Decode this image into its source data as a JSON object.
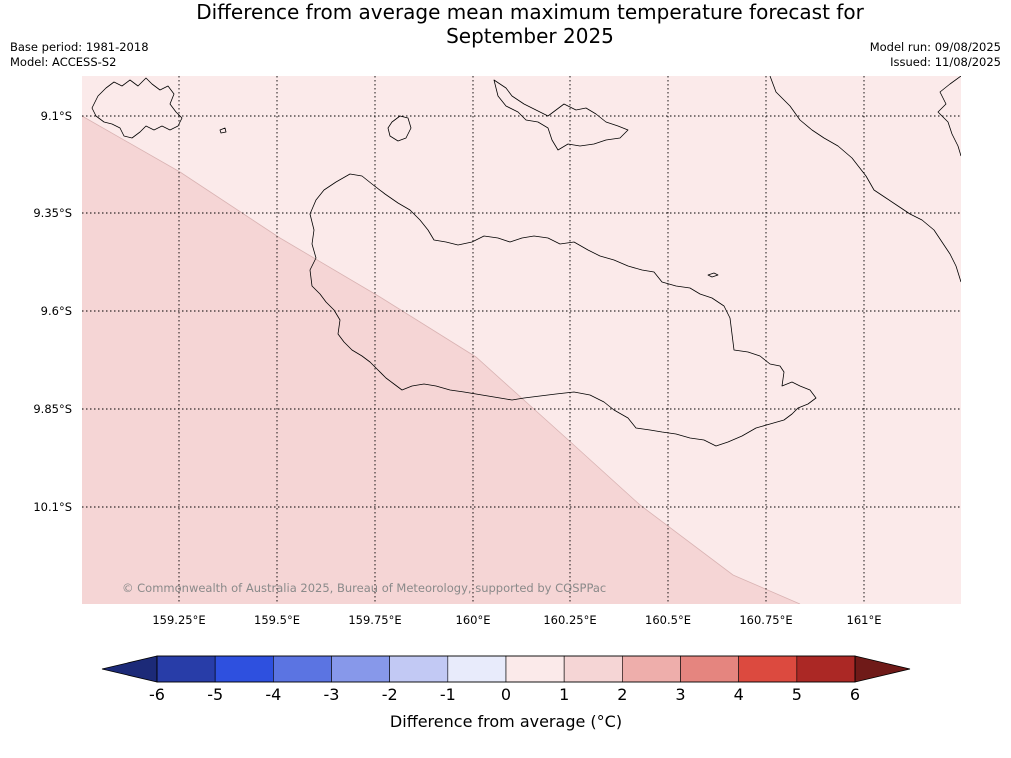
{
  "title_line1": "Difference from average mean maximum temperature forecast for",
  "title_line2": "September 2025",
  "meta": {
    "base_period": "Base period: 1981-2018",
    "model": "Model: ACCESS-S2",
    "model_run": "Model run: 09/08/2025",
    "issued": "Issued: 11/08/2025"
  },
  "map": {
    "lat_ticks": [
      "9.1°S",
      "9.35°S",
      "9.6°S",
      "9.85°S",
      "10.1°S"
    ],
    "lon_ticks": [
      "159.25°E",
      "159.5°E",
      "159.75°E",
      "160°E",
      "160.25°E",
      "160.5°E",
      "160.75°E",
      "161°E"
    ],
    "copyright": "© Commonwealth of Australia 2025, Bureau of Meteorology, supported by COSPPac",
    "regions": [
      {
        "name": "0 to 1",
        "color": "#fbeaea"
      },
      {
        "name": "1 to 2",
        "color": "#f5d5d5"
      }
    ]
  },
  "colorbar": {
    "label": "Difference from average (°C)",
    "tick_labels": [
      "-6",
      "-5",
      "-4",
      "-3",
      "-2",
      "-1",
      "0",
      "1",
      "2",
      "3",
      "4",
      "5",
      "6"
    ],
    "colors": [
      "#283da8",
      "#2e50df",
      "#5b74e2",
      "#8798ea",
      "#c2c9f4",
      "#e8ebfb",
      "#fbeaea",
      "#f5d5d5",
      "#eeaeab",
      "#e5857f",
      "#dc4a3f",
      "#ab2825"
    ],
    "under_color": "#1c2a78",
    "over_color": "#6f1a18"
  }
}
